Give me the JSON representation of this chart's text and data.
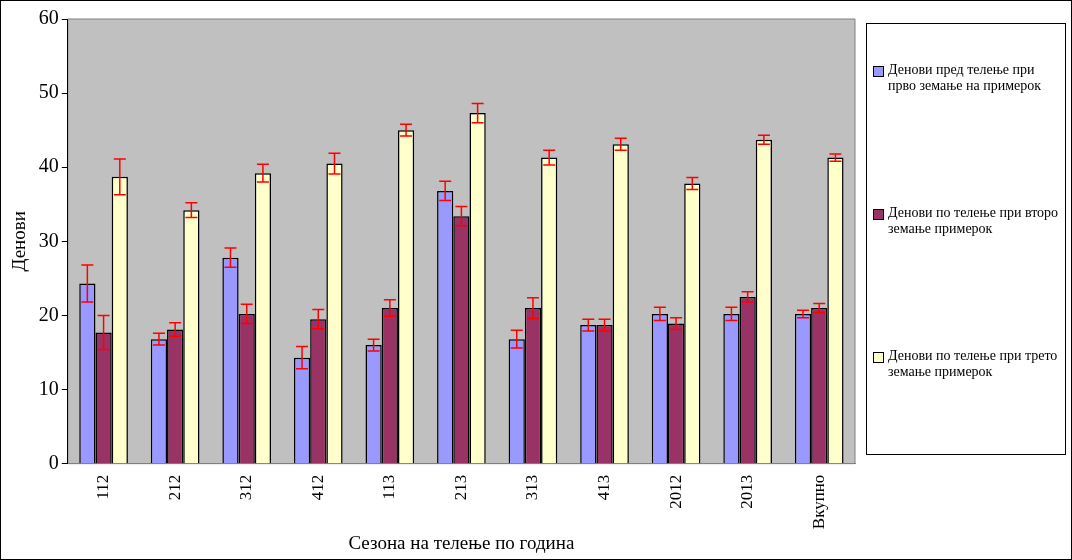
{
  "chart_data": {
    "type": "bar",
    "xlabel": "Сезона на телење по година",
    "ylabel": "Денови",
    "categories": [
      "112",
      "212",
      "312",
      "412",
      "113",
      "213",
      "313",
      "413",
      "2012",
      "2013",
      "Вкупно"
    ],
    "series": [
      {
        "name": "Денови пред телење при прво земање на примерок",
        "color": "#9999ff",
        "values": [
          24.3,
          16.8,
          27.8,
          14.3,
          16,
          36.8,
          16.8,
          18.7,
          20.2,
          20.2,
          20.2
        ],
        "errors": [
          2.5,
          0.8,
          1.3,
          1.5,
          0.8,
          1.3,
          1.2,
          0.8,
          0.9,
          0.9,
          0.5
        ]
      },
      {
        "name": "Денови по телење при второ земање примерок",
        "color": "#993366",
        "values": [
          17.7,
          18.1,
          20.2,
          19.5,
          21,
          33.4,
          21,
          18.7,
          18.9,
          22.5,
          21
        ],
        "errors": [
          2.3,
          0.9,
          1.3,
          1.3,
          1.1,
          1.3,
          1.4,
          0.8,
          0.8,
          0.7,
          0.6
        ]
      },
      {
        "name": "Денови по телење при трето земање примерок",
        "color": "#ffffcc",
        "values": [
          38.7,
          34.2,
          39.2,
          40.5,
          45,
          47.3,
          41.3,
          43.1,
          37.8,
          43.7,
          41.3
        ],
        "errors": [
          2.4,
          1,
          1.2,
          1.4,
          0.8,
          1.3,
          1,
          0.8,
          0.8,
          0.6,
          0.5
        ]
      }
    ],
    "ylim": [
      0,
      60
    ],
    "yticks": [
      0,
      10,
      20,
      30,
      40,
      50,
      60
    ],
    "grid": false,
    "legend": "right"
  }
}
